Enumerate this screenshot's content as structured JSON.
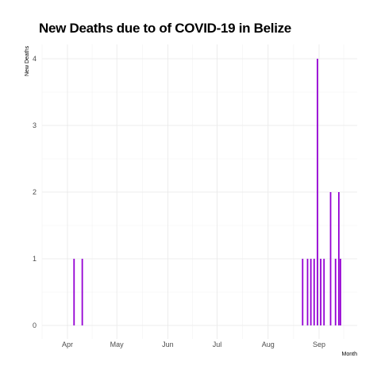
{
  "chart_data": {
    "type": "bar",
    "title": "New Deaths due to of COVID-19 in Belize",
    "xlabel": "Month",
    "ylabel": "New Deaths",
    "x_tick_labels": [
      "Apr",
      "May",
      "Jun",
      "Jul",
      "Aug",
      "Sep"
    ],
    "y_tick_labels": [
      "0",
      "1",
      "2",
      "3",
      "4"
    ],
    "xlim": [
      "2020-03-16",
      "2020-09-23"
    ],
    "ylim": [
      0,
      4.2
    ],
    "grid": true,
    "bar_color": "#9400d3",
    "series": [
      {
        "x": [
          "2020-04-05",
          "2020-04-10",
          "2020-08-22",
          "2020-08-25",
          "2020-08-27",
          "2020-08-29",
          "2020-08-31",
          "2020-09-02",
          "2020-09-04",
          "2020-09-08",
          "2020-09-11",
          "2020-09-13",
          "2020-09-14"
        ],
        "values": [
          1,
          1,
          1,
          1,
          1,
          1,
          4,
          1,
          1,
          2,
          1,
          2,
          1
        ]
      }
    ]
  }
}
